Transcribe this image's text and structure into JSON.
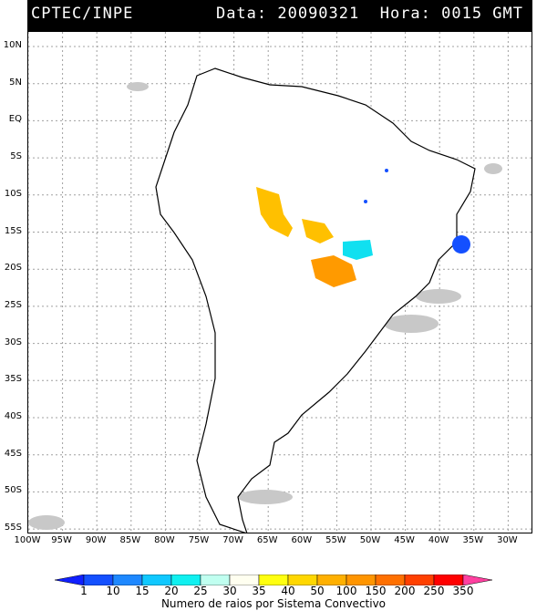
{
  "header": {
    "source": "CPTEC/INPE",
    "datetime": "Data: 20090321  Hora: 0015 GMT"
  },
  "map": {
    "lat_labels": [
      "10N",
      "5N",
      "EQ",
      "5S",
      "10S",
      "15S",
      "20S",
      "25S",
      "30S",
      "35S",
      "40S",
      "45S",
      "50S",
      "55S"
    ],
    "lon_labels": [
      "100W",
      "95W",
      "90W",
      "85W",
      "80W",
      "75W",
      "70W",
      "65W",
      "60W",
      "55W",
      "50W",
      "45W",
      "40W",
      "35W",
      "30W"
    ],
    "colors": {
      "cloud": "#c8c8c8",
      "land_border": "#000000",
      "grid": "#a0a0a0"
    }
  },
  "colorbar": {
    "labels": [
      "1",
      "10",
      "15",
      "20",
      "25",
      "30",
      "35",
      "40",
      "50",
      "100",
      "150",
      "200",
      "250",
      "350"
    ],
    "colors": [
      "#1020ff",
      "#1450ff",
      "#1e88ff",
      "#10c8ff",
      "#10f0f0",
      "#c0fff0",
      "#fffff0",
      "#ffff10",
      "#ffd700",
      "#ffb000",
      "#ff9500",
      "#ff7000",
      "#ff4000",
      "#ff0000",
      "#ff40a0"
    ],
    "title": "Numero de raios por Sistema Convectivo"
  }
}
